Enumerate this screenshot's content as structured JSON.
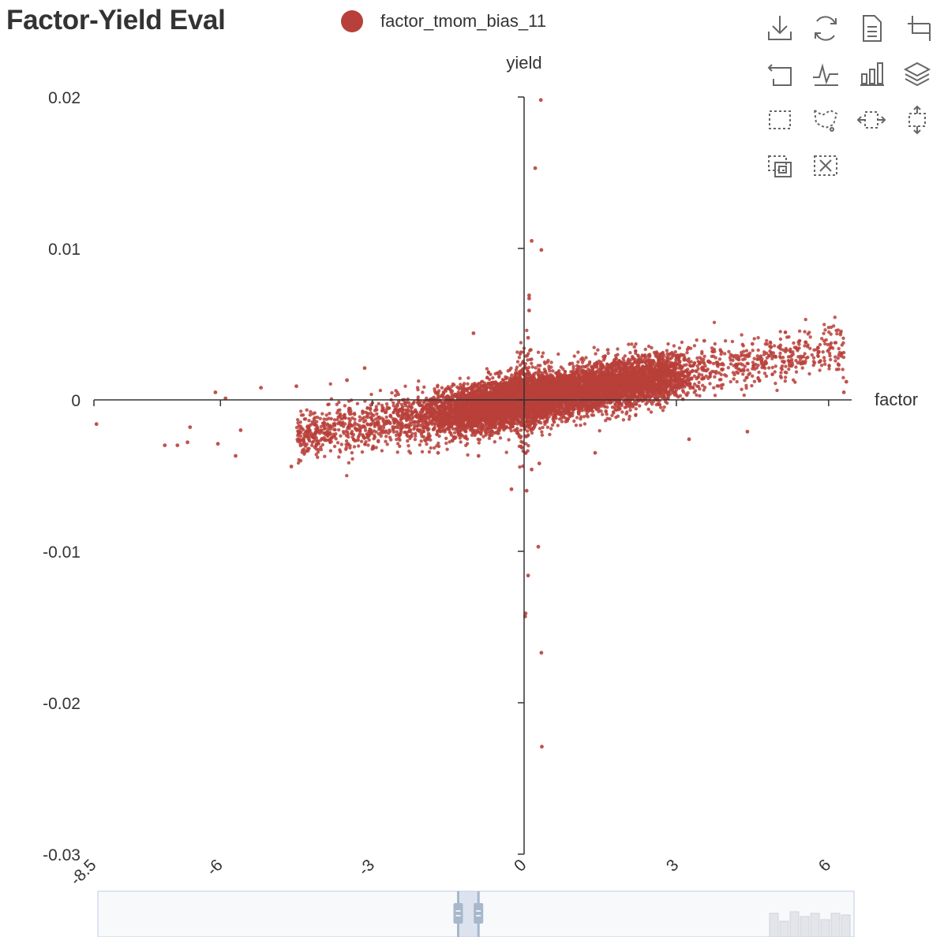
{
  "title": "Factor-Yield Eval",
  "legend": {
    "label": "factor_tmom_bias_11",
    "color": "#b8403a"
  },
  "toolbox": {
    "icons": [
      "download-icon",
      "refresh-icon",
      "data-view-icon",
      "zoom-icon",
      "zoom-back-icon",
      "line-chart-icon",
      "bar-chart-icon",
      "stack-icon",
      "rect-select-icon",
      "lasso-select-icon",
      "brush-horizontal-icon",
      "brush-vertical-icon",
      "keep-selection-icon",
      "clear-selection-icon"
    ],
    "color": "#666666"
  },
  "chart_data": {
    "type": "scatter",
    "series": [
      {
        "name": "factor_tmom_bias_11",
        "color": "#b8403a",
        "approx_point_count": 9000
      }
    ],
    "xlabel": "factor",
    "ylabel": "yield",
    "xlim": [
      -8.5,
      6.4
    ],
    "ylim": [
      -0.03,
      0.02
    ],
    "x_ticks": [
      -8.5,
      -6,
      -3,
      0,
      3,
      6
    ],
    "x_tick_labels": [
      "-8.5",
      "-6",
      "-3",
      "0",
      "3",
      "6"
    ],
    "y_ticks": [
      0.02,
      0.01,
      0,
      -0.01,
      -0.02,
      -0.03
    ],
    "y_tick_labels": [
      "0.02",
      "0.01",
      "0",
      "-0.01",
      "-0.02",
      "-0.03"
    ],
    "x_tick_label_rotation_deg": -45,
    "grid": false,
    "trend": {
      "slope_per_factor_unit": 0.00055
    },
    "outliers": [
      [
        -8.45,
        -0.0016
      ],
      [
        -7.1,
        -0.003
      ],
      [
        -6.85,
        -0.003
      ],
      [
        -6.65,
        -0.0028
      ],
      [
        -6.6,
        -0.0018
      ],
      [
        -6.05,
        -0.0029
      ],
      [
        -6.1,
        0.0005
      ],
      [
        -5.9,
        0.0001
      ],
      [
        -5.7,
        -0.0037
      ],
      [
        -5.6,
        -0.002
      ],
      [
        -5.2,
        0.0008
      ],
      [
        -4.5,
        0.0009
      ],
      [
        -4.6,
        -0.0044
      ],
      [
        -3.5,
        0.0013
      ],
      [
        -3.15,
        0.0021
      ],
      [
        -1.0,
        0.0044
      ],
      [
        -1.7,
        -0.0035
      ],
      [
        -0.9,
        -0.0037
      ],
      [
        -0.25,
        -0.0059
      ],
      [
        0.1,
        0.0069
      ],
      [
        0.1,
        0.0067
      ],
      [
        0.1,
        0.0059
      ],
      [
        0.08,
        0.0041
      ],
      [
        0.13,
        0.0033
      ],
      [
        0.15,
        0.0105
      ],
      [
        0.34,
        0.0099
      ],
      [
        0.22,
        0.0153
      ],
      [
        0.33,
        0.0198
      ],
      [
        0.05,
        -0.006
      ],
      [
        0.15,
        -0.0046
      ],
      [
        0.3,
        -0.0042
      ],
      [
        0.28,
        -0.0097
      ],
      [
        0.08,
        -0.0116
      ],
      [
        0.03,
        -0.0141
      ],
      [
        0.02,
        -0.0143
      ],
      [
        0.34,
        -0.0167
      ],
      [
        0.35,
        -0.0229
      ],
      [
        1.65,
        0.0033
      ],
      [
        3.55,
        0.0039
      ],
      [
        4.5,
        0.0037
      ],
      [
        5.05,
        0.0036
      ],
      [
        5.55,
        0.0038
      ],
      [
        6.25,
        0.0029
      ],
      [
        6.2,
        0.0023
      ],
      [
        6.35,
        0.0012
      ],
      [
        6.3,
        0.0005
      ],
      [
        4.4,
        -0.0021
      ],
      [
        3.25,
        -0.0026
      ],
      [
        1.4,
        -0.0035
      ]
    ]
  },
  "data_zoom": {
    "start_value": -1.4,
    "end_value": -1.0
  }
}
